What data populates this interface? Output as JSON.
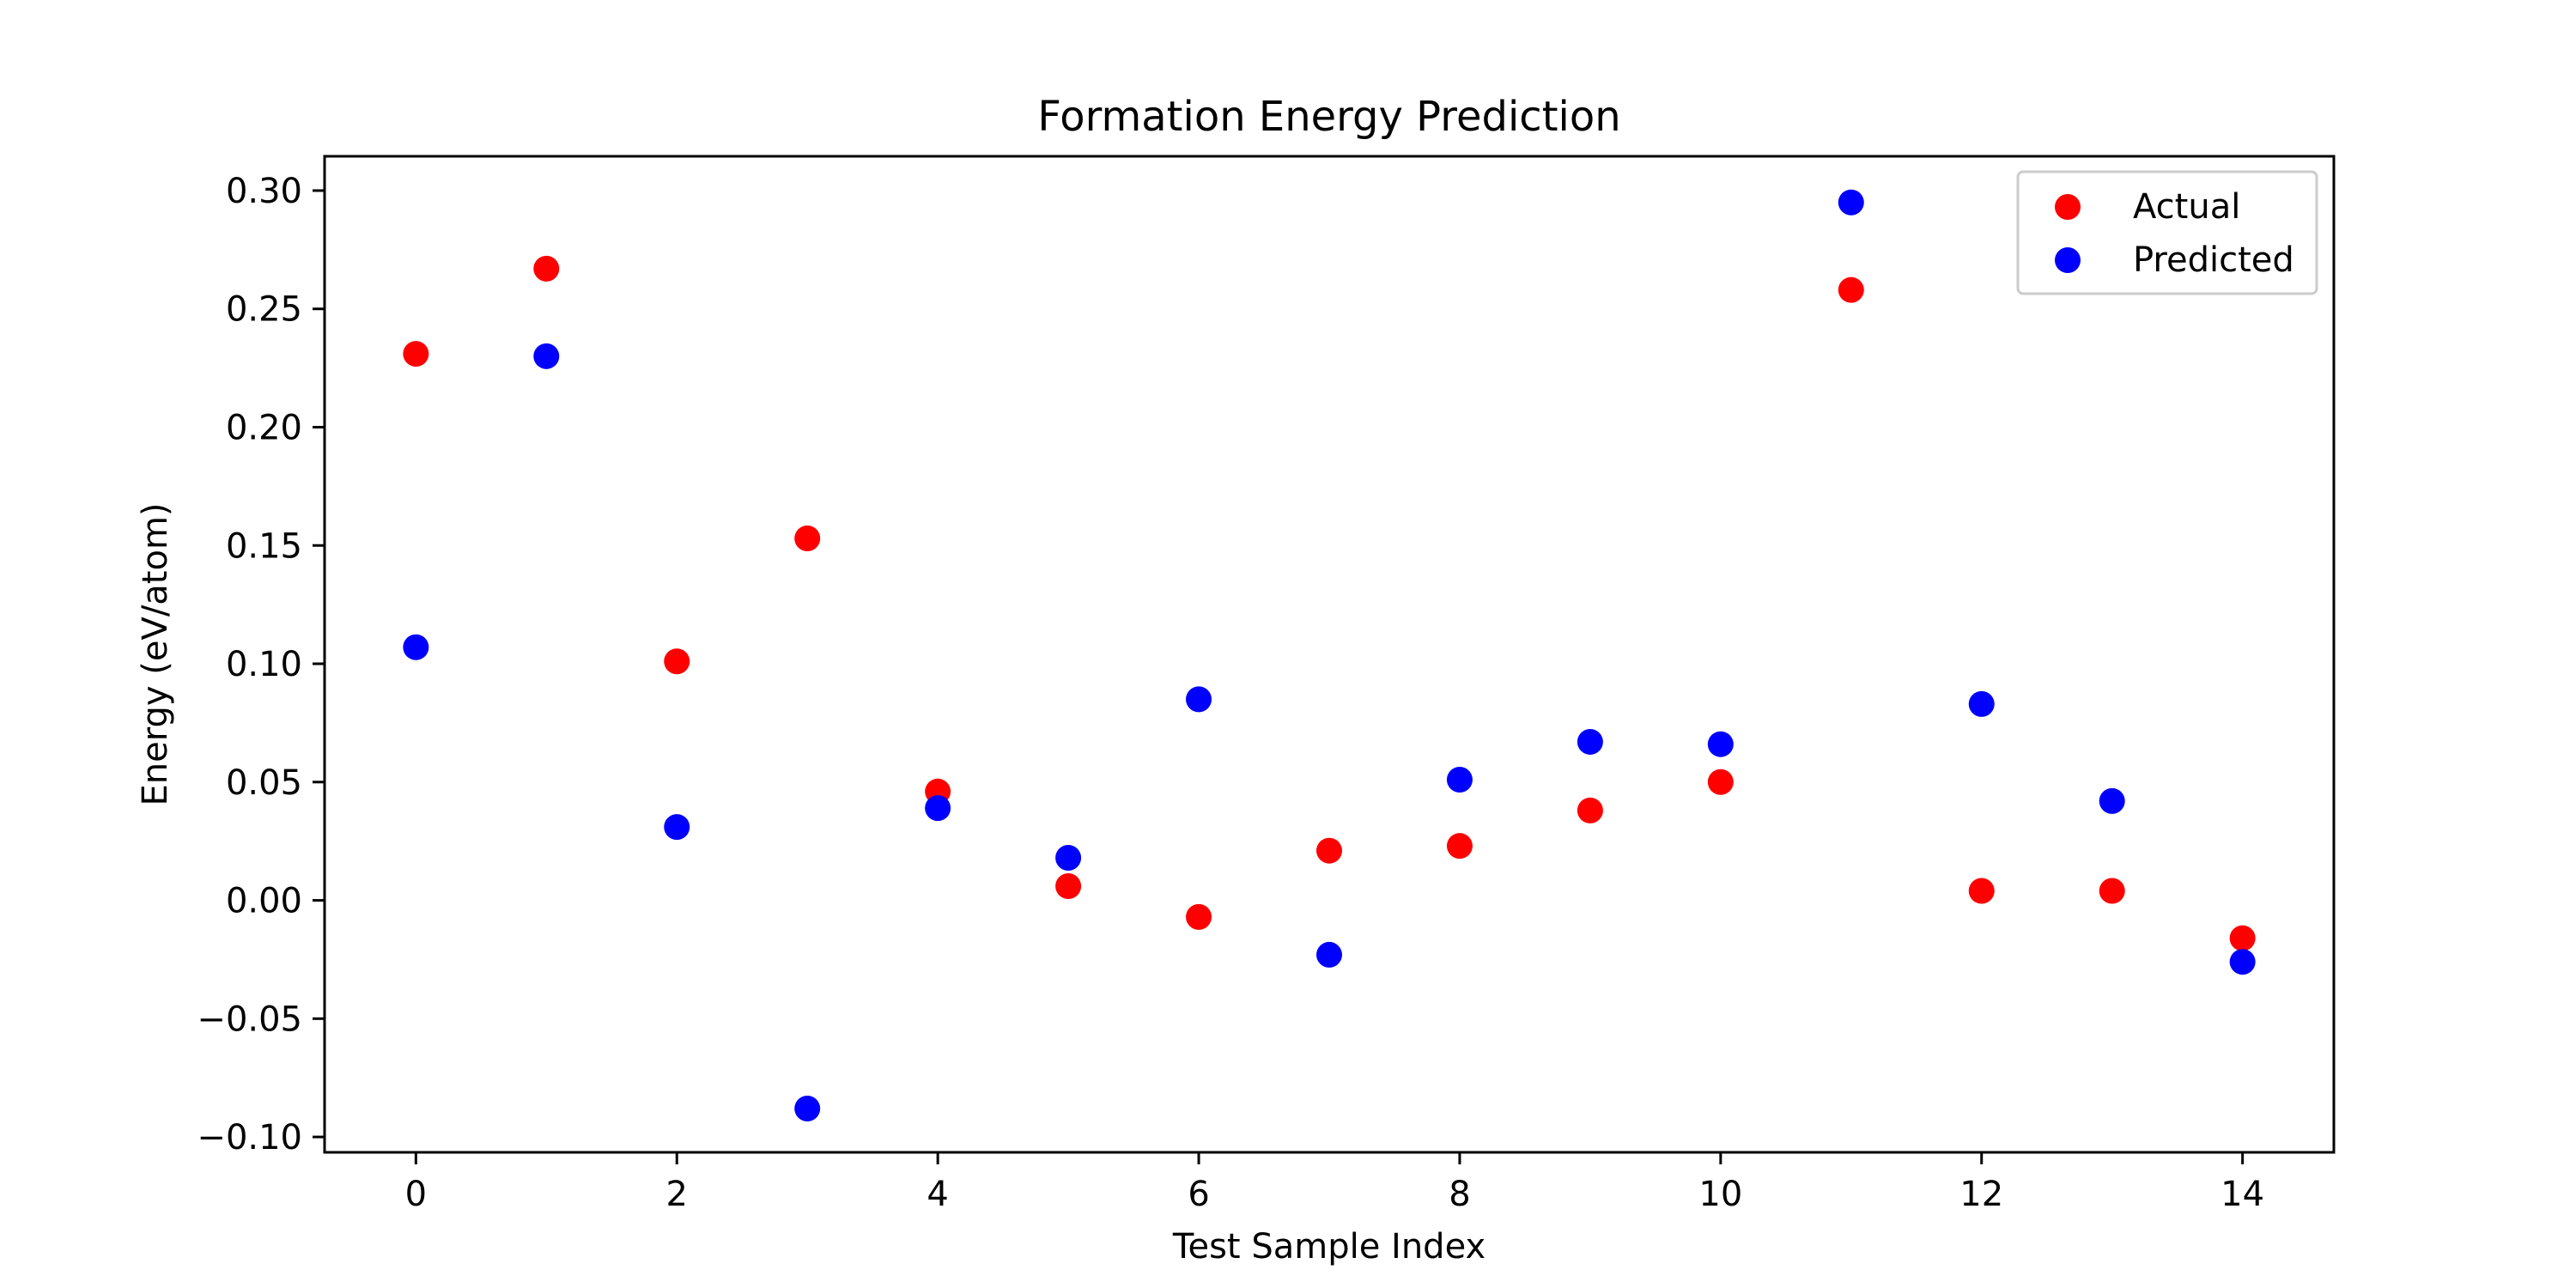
{
  "chart_data": {
    "type": "scatter",
    "title": "Formation Energy Prediction",
    "xlabel": "Test Sample Index",
    "ylabel": "Energy (eV/atom)",
    "xlim": [
      -0.7,
      14.7
    ],
    "ylim": [
      -0.1065,
      0.3145
    ],
    "xticks": [
      0,
      2,
      4,
      6,
      8,
      10,
      12,
      14
    ],
    "xtick_labels": [
      "0",
      "2",
      "4",
      "6",
      "8",
      "10",
      "12",
      "14"
    ],
    "yticks": [
      -0.1,
      -0.05,
      0.0,
      0.05,
      0.1,
      0.15,
      0.2,
      0.25,
      0.3
    ],
    "ytick_labels": [
      "−0.10",
      "−0.05",
      "0.00",
      "0.05",
      "0.10",
      "0.15",
      "0.20",
      "0.25",
      "0.30"
    ],
    "grid": false,
    "legend_position": "top-right",
    "x": [
      0,
      1,
      2,
      3,
      4,
      5,
      6,
      7,
      8,
      9,
      10,
      11,
      12,
      13,
      14
    ],
    "series": [
      {
        "name": "Actual",
        "color": "#ff0000",
        "values": [
          0.231,
          0.267,
          0.101,
          0.153,
          0.046,
          0.006,
          -0.007,
          0.021,
          0.023,
          0.038,
          0.05,
          0.258,
          0.004,
          0.004,
          -0.016
        ]
      },
      {
        "name": "Predicted",
        "color": "#0000ff",
        "values": [
          0.107,
          0.23,
          0.031,
          -0.088,
          0.039,
          0.018,
          0.085,
          -0.023,
          0.051,
          0.067,
          0.066,
          0.295,
          0.083,
          0.042,
          -0.026
        ]
      }
    ]
  }
}
